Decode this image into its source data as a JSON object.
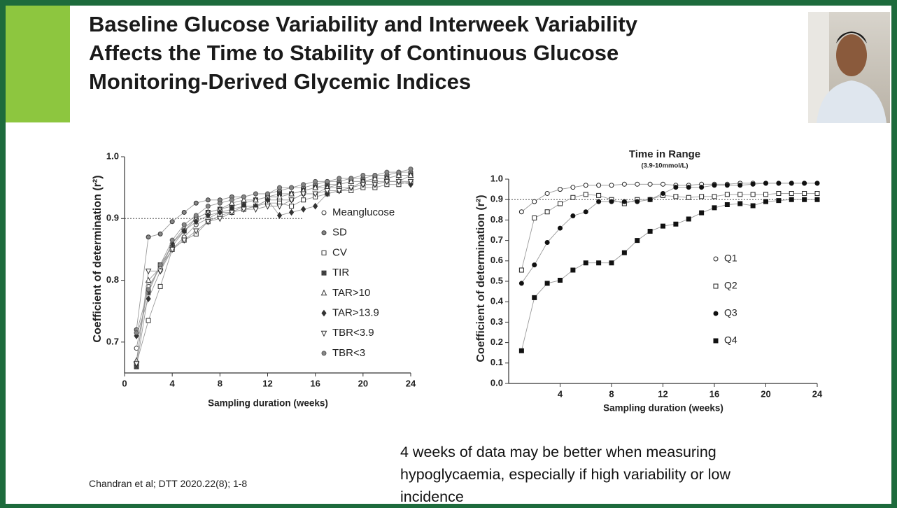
{
  "slide": {
    "title_lines": [
      "Baseline Glucose Variability and Interweek Variability",
      "Affects the Time to Stability of Continuous Glucose",
      "Monitoring-Derived Glycemic Indices"
    ],
    "citation": "Chandran et al; DTT 2020.22(8); 1-8",
    "note": "4 weeks of data may be better when measuring hypoglycaemia, especially if high variability or low incidence"
  },
  "chart_data": [
    {
      "type": "line",
      "xlabel": "Sampling duration (weeks)",
      "ylabel": "Coefficient of determination (r²)",
      "x": [
        1,
        2,
        3,
        4,
        5,
        6,
        7,
        8,
        9,
        10,
        11,
        12,
        13,
        14,
        15,
        16,
        17,
        18,
        19,
        20,
        21,
        22,
        23,
        24
      ],
      "xlim": [
        0,
        24
      ],
      "xticks": [
        0,
        4,
        8,
        12,
        16,
        20,
        24
      ],
      "ylim": [
        0.65,
        1.0
      ],
      "yticks": [
        0.7,
        0.8,
        0.9,
        {
          "value": 1,
          "label": "1.0"
        }
      ],
      "hline": 0.9,
      "legend": true,
      "line_color": "#9a9a9a",
      "series": [
        {
          "name": "Meanglucose",
          "marker": "circle-open",
          "color": "#333333",
          "values": [
            0.69,
            0.79,
            0.82,
            0.85,
            0.87,
            0.89,
            0.9,
            0.91,
            0.91,
            0.92,
            0.92,
            0.93,
            0.93,
            0.93,
            0.94,
            0.94,
            0.95,
            0.95,
            0.95,
            0.96,
            0.96,
            0.96,
            0.96,
            0.97
          ]
        },
        {
          "name": "SD",
          "marker": "circle-dot",
          "color": "#333333",
          "values": [
            0.72,
            0.87,
            0.875,
            0.895,
            0.91,
            0.925,
            0.93,
            0.93,
            0.935,
            0.935,
            0.94,
            0.94,
            0.945,
            0.95,
            0.95,
            0.955,
            0.96,
            0.96,
            0.965,
            0.965,
            0.97,
            0.97,
            0.975,
            0.975
          ]
        },
        {
          "name": "CV",
          "marker": "square-open",
          "color": "#333333",
          "values": [
            0.665,
            0.735,
            0.79,
            0.85,
            0.865,
            0.875,
            0.895,
            0.905,
            0.91,
            0.915,
            0.92,
            0.925,
            0.925,
            0.92,
            0.93,
            0.935,
            0.94,
            0.945,
            0.945,
            0.95,
            0.95,
            0.955,
            0.955,
            0.96
          ]
        },
        {
          "name": "TIR",
          "marker": "square-x",
          "color": "#333333",
          "values": [
            0.66,
            0.78,
            0.825,
            0.855,
            0.88,
            0.9,
            0.91,
            0.915,
            0.92,
            0.925,
            0.93,
            0.935,
            0.94,
            0.94,
            0.945,
            0.95,
            0.955,
            0.955,
            0.96,
            0.96,
            0.965,
            0.965,
            0.97,
            0.97
          ]
        },
        {
          "name": "TAR>10",
          "marker": "triangle-open",
          "color": "#333333",
          "values": [
            0.67,
            0.8,
            0.82,
            0.86,
            0.885,
            0.9,
            0.91,
            0.915,
            0.925,
            0.93,
            0.93,
            0.935,
            0.935,
            0.94,
            0.945,
            0.95,
            0.95,
            0.955,
            0.96,
            0.96,
            0.965,
            0.965,
            0.97,
            0.97
          ]
        },
        {
          "name": "TAR>13.9",
          "marker": "diamond-filled",
          "color": "#333333",
          "values": [
            0.71,
            0.77,
            0.815,
            0.86,
            0.88,
            0.895,
            0.905,
            0.91,
            0.915,
            0.92,
            0.92,
            0.93,
            0.905,
            0.91,
            0.915,
            0.92,
            0.94,
            0.945,
            0.95,
            0.955,
            0.955,
            0.96,
            0.96,
            0.955
          ]
        },
        {
          "name": "TBR<3.9",
          "marker": "triangle-down-open",
          "color": "#333333",
          "values": [
            0.665,
            0.815,
            0.815,
            0.85,
            0.865,
            0.88,
            0.895,
            0.9,
            0.91,
            0.915,
            0.915,
            0.92,
            0.92,
            0.93,
            0.94,
            0.94,
            0.945,
            0.945,
            0.95,
            0.955,
            0.955,
            0.96,
            0.96,
            0.96
          ]
        },
        {
          "name": "TBR<3",
          "marker": "circle-dot",
          "color": "#555555",
          "values": [
            0.715,
            0.785,
            0.825,
            0.865,
            0.89,
            0.905,
            0.92,
            0.925,
            0.93,
            0.935,
            0.94,
            0.94,
            0.95,
            0.95,
            0.955,
            0.96,
            0.96,
            0.965,
            0.965,
            0.97,
            0.97,
            0.975,
            0.975,
            0.98
          ]
        }
      ]
    },
    {
      "type": "line",
      "title": "Time in Range",
      "subtitle": "(3.9-10mmol/L)",
      "xlabel": "Sampling duration (weeks)",
      "ylabel": "Coefficient of determination (r²)",
      "x": [
        1,
        2,
        3,
        4,
        5,
        6,
        7,
        8,
        9,
        10,
        11,
        12,
        13,
        14,
        15,
        16,
        17,
        18,
        19,
        20,
        21,
        22,
        23,
        24
      ],
      "xlim": [
        0,
        24
      ],
      "xticks": [
        4,
        8,
        12,
        16,
        20,
        24
      ],
      "ylim": [
        0,
        1.0
      ],
      "yticks": [
        {
          "value": 0,
          "label": "0.0"
        },
        0.1,
        0.2,
        0.3,
        0.4,
        0.5,
        0.6,
        0.7,
        0.8,
        0.9,
        {
          "value": 1,
          "label": "1.0"
        }
      ],
      "hline": 0.9,
      "legend": true,
      "line_color": "#9a9a9a",
      "series": [
        {
          "name": "Q1",
          "marker": "circle-open",
          "color": "#222222",
          "values": [
            0.84,
            0.89,
            0.93,
            0.95,
            0.96,
            0.97,
            0.97,
            0.97,
            0.975,
            0.975,
            0.975,
            0.975,
            0.97,
            0.97,
            0.975,
            0.975,
            0.975,
            0.98,
            0.98,
            0.98,
            0.98,
            0.98,
            0.98,
            0.98
          ]
        },
        {
          "name": "Q2",
          "marker": "square-open",
          "color": "#222222",
          "values": [
            0.555,
            0.81,
            0.84,
            0.88,
            0.91,
            0.925,
            0.92,
            0.9,
            0.88,
            0.9,
            0.9,
            0.92,
            0.915,
            0.91,
            0.915,
            0.915,
            0.925,
            0.925,
            0.925,
            0.925,
            0.93,
            0.93,
            0.93,
            0.93
          ]
        },
        {
          "name": "Q3",
          "marker": "circle-filled",
          "color": "#111111",
          "values": [
            0.49,
            0.58,
            0.69,
            0.76,
            0.82,
            0.84,
            0.89,
            0.89,
            0.89,
            0.89,
            0.9,
            0.93,
            0.96,
            0.96,
            0.96,
            0.97,
            0.97,
            0.97,
            0.975,
            0.98,
            0.98,
            0.98,
            0.98,
            0.98
          ]
        },
        {
          "name": "Q4",
          "marker": "square-filled",
          "color": "#111111",
          "values": [
            0.16,
            0.42,
            0.49,
            0.505,
            0.555,
            0.59,
            0.59,
            0.59,
            0.64,
            0.7,
            0.745,
            0.77,
            0.78,
            0.805,
            0.835,
            0.86,
            0.875,
            0.88,
            0.87,
            0.89,
            0.895,
            0.9,
            0.9,
            0.9
          ]
        }
      ]
    }
  ]
}
